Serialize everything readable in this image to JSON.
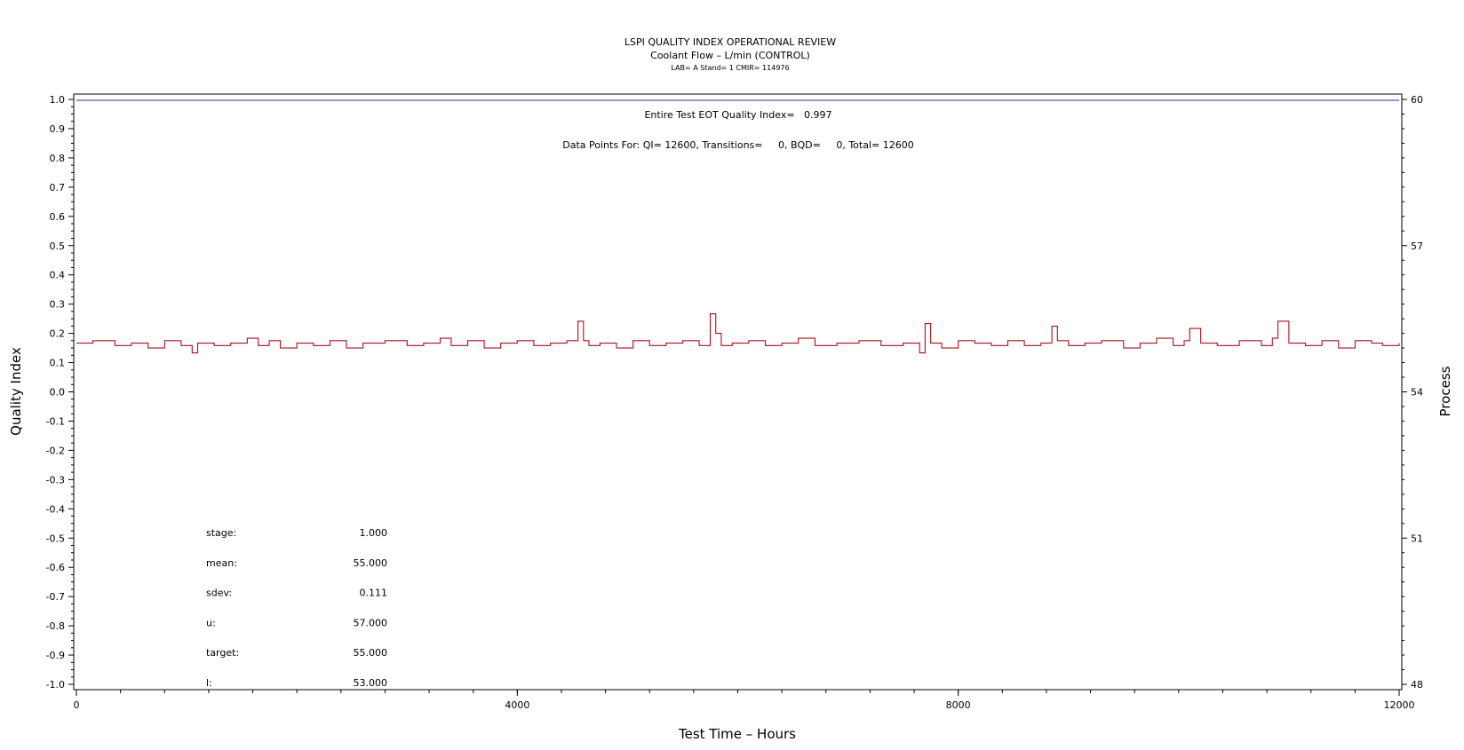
{
  "chart_data": {
    "type": "line",
    "title": "LSPI QUALITY INDEX OPERATIONAL REVIEW",
    "subtitle": "Coolant Flow – L/min (CONTROL)",
    "subtitle2": "LAB= A Stand= 1 CMIR= 114976",
    "annotations": {
      "quality_index": "Entire Test EOT Quality Index=   0.997",
      "data_points": "Data Points For: QI= 12600, Transitions=     0, BQD=     0, Total= 12600"
    },
    "xlabel": "Test Time – Hours",
    "ylabel": "Quality Index",
    "y2label": "Process",
    "xlim": [
      0,
      12000
    ],
    "ylim": [
      -1.0,
      1.0
    ],
    "y2lim": [
      48,
      60
    ],
    "x_ticks": [
      "0",
      "4000",
      "8000",
      "12000"
    ],
    "y_ticks": [
      "-1.0",
      "-0.9",
      "-0.8",
      "-0.7",
      "-0.6",
      "-0.5",
      "-0.4",
      "-0.3",
      "-0.2",
      "-0.1",
      "0.0",
      "0.1",
      "0.2",
      "0.3",
      "0.4",
      "0.5",
      "0.6",
      "0.7",
      "0.8",
      "0.9",
      "1.0"
    ],
    "y2_ticks": [
      "48",
      "51",
      "54",
      "57",
      "60"
    ],
    "grid": false,
    "series": [
      {
        "color": "#1f2a9e",
        "axis": "left",
        "x": [
          0,
          12000
        ],
        "y": [
          0.997,
          0.997
        ]
      },
      {
        "color": "#a8101c",
        "axis": "right",
        "x": [
          0,
          150,
          350,
          500,
          650,
          800,
          950,
          1050,
          1100,
          1250,
          1400,
          1550,
          1650,
          1750,
          1850,
          2000,
          2150,
          2300,
          2450,
          2600,
          2800,
          3000,
          3150,
          3300,
          3400,
          3550,
          3700,
          3850,
          4000,
          4150,
          4300,
          4450,
          4550,
          4600,
          4650,
          4750,
          4900,
          5050,
          5200,
          5350,
          5500,
          5650,
          5750,
          5800,
          5850,
          5950,
          6100,
          6250,
          6400,
          6550,
          6700,
          6900,
          7100,
          7300,
          7500,
          7650,
          7700,
          7750,
          7850,
          8000,
          8150,
          8300,
          8450,
          8600,
          8750,
          8850,
          8900,
          9000,
          9150,
          9300,
          9500,
          9650,
          9800,
          9950,
          10050,
          10100,
          10200,
          10350,
          10550,
          10750,
          10850,
          10900,
          11000,
          11150,
          11300,
          11450,
          11600,
          11750,
          11850,
          12000
        ],
        "y": [
          55.0,
          55.05,
          54.95,
          55.0,
          54.9,
          55.05,
          54.95,
          54.8,
          55.0,
          54.95,
          55.0,
          55.1,
          54.95,
          55.05,
          54.9,
          55.0,
          54.95,
          55.05,
          54.9,
          55.0,
          55.05,
          54.95,
          55.0,
          55.1,
          54.95,
          55.05,
          54.9,
          55.0,
          55.05,
          54.95,
          55.0,
          55.05,
          55.45,
          55.05,
          54.95,
          55.0,
          54.9,
          55.05,
          54.95,
          55.0,
          55.05,
          54.95,
          55.6,
          55.2,
          54.95,
          55.0,
          55.05,
          54.95,
          55.0,
          55.1,
          54.95,
          55.0,
          55.05,
          54.95,
          55.0,
          54.8,
          55.4,
          55.0,
          54.9,
          55.05,
          55.0,
          54.95,
          55.05,
          54.95,
          55.0,
          55.35,
          55.05,
          54.95,
          55.0,
          55.05,
          54.9,
          55.0,
          55.1,
          54.95,
          55.05,
          55.3,
          55.0,
          54.95,
          55.05,
          54.95,
          55.1,
          55.45,
          55.0,
          54.95,
          55.05,
          54.9,
          55.05,
          55.0,
          54.95,
          55.0
        ]
      }
    ],
    "stats": [
      {
        "label": "stage:",
        "value": "1.000"
      },
      {
        "label": "mean:",
        "value": "55.000"
      },
      {
        "label": "sdev:",
        "value": "0.111"
      },
      {
        "label": "u:",
        "value": "57.000"
      },
      {
        "label": "target:",
        "value": "55.000"
      },
      {
        "label": "l:",
        "value": "53.000"
      }
    ]
  }
}
